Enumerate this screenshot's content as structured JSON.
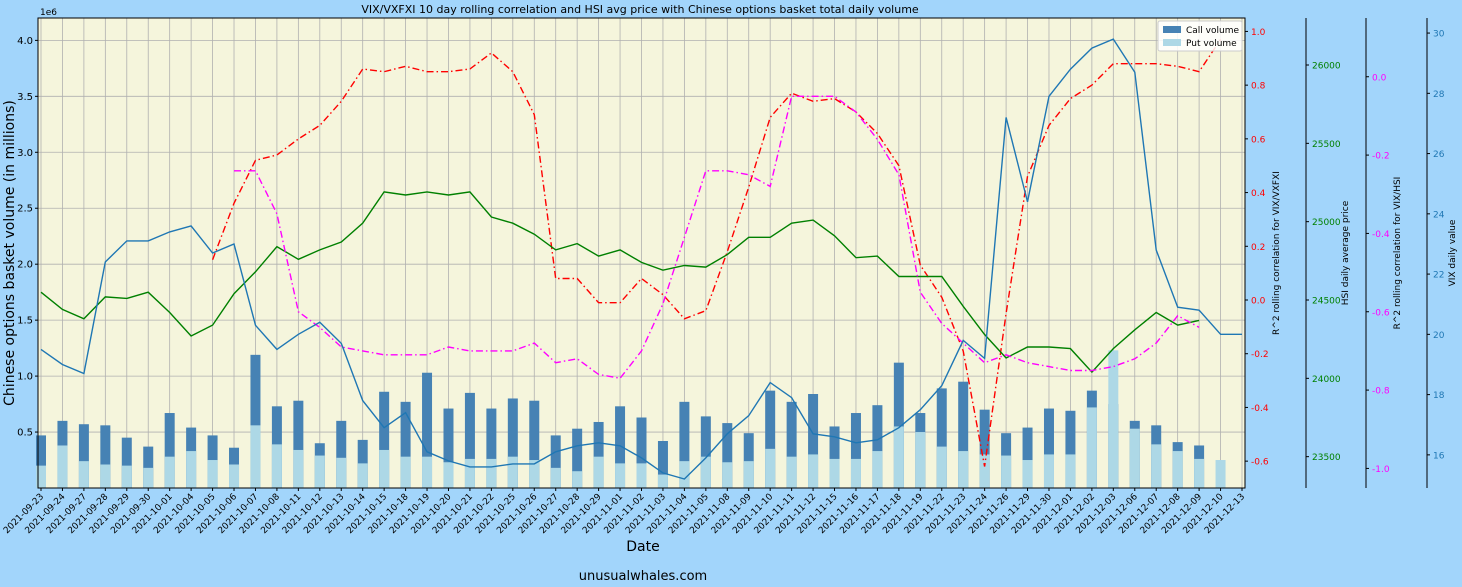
{
  "chart_data": {
    "type": "bar",
    "title": "VIX/VXFXI 10 day rolling correlation and HSI avg price with Chinese options basket total daily volume",
    "xlabel": "Date",
    "ylabel": "Chinese options basket volume (in millions)",
    "y_offset_label": "1e6",
    "footer": "unusualwhales.com",
    "grid": true,
    "legend_position": "top-right",
    "colors": {
      "figure_background": "#a2d5fb",
      "plot_background": "#f5f5dc",
      "call": "#4682b4",
      "put": "#add8e6",
      "corr_vxfxi": "#ff0000",
      "hsi": "#008000",
      "corr_hsi": "#ff00ff",
      "vix": "#1f77b4"
    },
    "categories": [
      "2021-09-23",
      "2021-09-24",
      "2021-09-27",
      "2021-09-28",
      "2021-09-29",
      "2021-09-30",
      "2021-10-01",
      "2021-10-04",
      "2021-10-05",
      "2021-10-06",
      "2021-10-07",
      "2021-10-08",
      "2021-10-11",
      "2021-10-12",
      "2021-10-13",
      "2021-10-14",
      "2021-10-15",
      "2021-10-18",
      "2021-10-19",
      "2021-10-20",
      "2021-10-21",
      "2021-10-22",
      "2021-10-25",
      "2021-10-26",
      "2021-10-27",
      "2021-10-28",
      "2021-10-29",
      "2021-11-01",
      "2021-11-02",
      "2021-11-03",
      "2021-11-04",
      "2021-11-05",
      "2021-11-08",
      "2021-11-09",
      "2021-11-10",
      "2021-11-11",
      "2021-11-12",
      "2021-11-15",
      "2021-11-16",
      "2021-11-17",
      "2021-11-18",
      "2021-11-19",
      "2021-11-22",
      "2021-11-23",
      "2021-11-24",
      "2021-11-26",
      "2021-11-29",
      "2021-11-30",
      "2021-12-01",
      "2021-12-02",
      "2021-12-03",
      "2021-12-06",
      "2021-12-07",
      "2021-12-08",
      "2021-12-09",
      "2021-12-10",
      "2021-12-13"
    ],
    "left_axis": {
      "label": "Chinese options basket volume (in millions)",
      "ylim": [
        0,
        4.2
      ],
      "ticks": [
        "0.5",
        "1.0",
        "1.5",
        "2.0",
        "2.5",
        "3.0",
        "3.5",
        "4.0"
      ]
    },
    "bar_series": [
      {
        "name": "Call volume",
        "values": [
          0.47,
          0.6,
          0.57,
          0.56,
          0.45,
          0.37,
          0.67,
          0.54,
          0.47,
          0.36,
          1.19,
          0.73,
          0.78,
          0.4,
          0.6,
          0.43,
          0.86,
          0.77,
          1.03,
          0.71,
          0.85,
          0.71,
          0.8,
          0.78,
          0.47,
          0.53,
          0.59,
          0.73,
          0.63,
          0.42,
          0.77,
          0.64,
          0.58,
          0.49,
          0.87,
          0.77,
          0.84,
          0.55,
          0.67,
          0.74,
          1.12,
          0.67,
          0.89,
          0.95,
          0.7,
          0.49,
          0.54,
          0.71,
          0.69,
          0.87,
          0.75,
          0.6,
          0.56,
          0.41,
          0.38,
          null,
          null
        ]
      },
      {
        "name": "Put volume",
        "values": [
          0.2,
          0.38,
          0.24,
          0.21,
          0.2,
          0.18,
          0.28,
          0.33,
          0.25,
          0.21,
          0.56,
          0.39,
          0.34,
          0.29,
          0.27,
          0.22,
          0.34,
          0.28,
          0.28,
          0.23,
          0.26,
          0.26,
          0.28,
          0.25,
          0.18,
          0.15,
          0.28,
          0.22,
          0.22,
          0.12,
          0.24,
          0.28,
          0.23,
          0.24,
          0.35,
          0.28,
          0.3,
          0.26,
          0.26,
          0.33,
          0.55,
          0.5,
          0.37,
          0.33,
          0.3,
          0.29,
          0.25,
          0.3,
          0.3,
          0.72,
          1.23,
          0.53,
          0.39,
          0.33,
          0.26,
          0.25,
          null
        ]
      }
    ],
    "line_series": [
      {
        "name": "R^2 rolling correlation for VIX/VXFXI",
        "axis_label": "R^2 rolling correlation for VIX/VXFXI",
        "ylim": [
          -0.7,
          1.05
        ],
        "ticks": [
          "-0.6",
          "-0.4",
          "-0.2",
          "0.0",
          "0.2",
          "0.4",
          "0.6",
          "0.8",
          "1.0"
        ],
        "tick_values": [
          -0.6,
          -0.4,
          -0.2,
          0.0,
          0.2,
          0.4,
          0.6,
          0.8,
          1.0
        ],
        "style": "dashdot",
        "values": [
          null,
          null,
          null,
          null,
          null,
          null,
          null,
          null,
          0.15,
          0.36,
          0.52,
          0.54,
          0.6,
          0.65,
          0.74,
          0.86,
          0.85,
          0.87,
          0.85,
          0.85,
          0.86,
          0.92,
          0.85,
          0.69,
          0.08,
          0.08,
          -0.01,
          -0.01,
          0.08,
          0.02,
          -0.07,
          -0.04,
          0.18,
          0.42,
          0.68,
          0.77,
          0.74,
          0.75,
          0.7,
          0.62,
          0.5,
          0.13,
          0.01,
          -0.19,
          -0.62,
          -0.05,
          0.46,
          0.65,
          0.75,
          0.8,
          0.88,
          0.88,
          0.88,
          0.87,
          0.85,
          0.97,
          null
        ]
      },
      {
        "name": "HSI daily average price",
        "axis_label": "HSI daily average price",
        "ylim": [
          23300,
          26300
        ],
        "ticks": [
          "23500",
          "24000",
          "24500",
          "25000",
          "25500",
          "26000"
        ],
        "tick_values": [
          23500,
          24000,
          24500,
          25000,
          25500,
          26000
        ],
        "style": "solid",
        "values": [
          24550,
          24440,
          24380,
          24520,
          24510,
          24550,
          24420,
          24270,
          24340,
          24540,
          24680,
          24840,
          24760,
          24820,
          24870,
          24990,
          25190,
          25170,
          25190,
          25170,
          25190,
          25030,
          24990,
          24920,
          24820,
          24860,
          24780,
          24820,
          24740,
          24690,
          24720,
          24710,
          24790,
          24900,
          24900,
          24990,
          25010,
          24910,
          24770,
          24780,
          24650,
          24650,
          24650,
          24460,
          24280,
          24130,
          24200,
          24200,
          24190,
          24040,
          24190,
          24310,
          24420,
          24340,
          24370,
          null,
          null
        ]
      },
      {
        "name": "R^2 rolling correlation for VIX/HSI",
        "axis_label": "R^2 rolling correlation for VIX/HSI",
        "ylim": [
          -1.05,
          0.15
        ],
        "ticks": [
          "-1.0",
          "-0.8",
          "-0.6",
          "-0.4",
          "-0.2",
          "0.0"
        ],
        "tick_values": [
          -1.0,
          -0.8,
          -0.6,
          -0.4,
          -0.2,
          0.0
        ],
        "style": "dashdot",
        "values": [
          null,
          null,
          null,
          null,
          null,
          null,
          null,
          null,
          null,
          -0.24,
          -0.24,
          -0.35,
          -0.6,
          -0.64,
          -0.69,
          -0.7,
          -0.71,
          -0.71,
          -0.71,
          -0.69,
          -0.7,
          -0.7,
          -0.7,
          -0.68,
          -0.73,
          -0.72,
          -0.76,
          -0.77,
          -0.7,
          -0.58,
          -0.41,
          -0.24,
          -0.24,
          -0.25,
          -0.28,
          -0.05,
          -0.05,
          -0.05,
          -0.09,
          -0.16,
          -0.25,
          -0.55,
          -0.63,
          -0.68,
          -0.73,
          -0.71,
          -0.73,
          -0.74,
          -0.75,
          -0.75,
          -0.74,
          -0.72,
          -0.68,
          -0.61,
          -0.64,
          null,
          null
        ]
      },
      {
        "name": "VIX daily value",
        "axis_label": "VIX daily value",
        "ylim": [
          14.9,
          30.5
        ],
        "ticks": [
          "16",
          "18",
          "20",
          "22",
          "24",
          "26",
          "28",
          "30"
        ],
        "tick_values": [
          16,
          18,
          20,
          22,
          24,
          26,
          28,
          30
        ],
        "style": "solid",
        "values": [
          19.5,
          19.0,
          18.7,
          22.4,
          23.1,
          23.1,
          23.4,
          23.6,
          22.7,
          23.0,
          20.3,
          19.5,
          20.0,
          20.4,
          19.7,
          17.8,
          16.9,
          17.4,
          16.1,
          15.8,
          15.6,
          15.6,
          15.7,
          15.7,
          16.1,
          16.3,
          16.4,
          16.3,
          15.9,
          15.4,
          15.2,
          15.9,
          16.7,
          17.3,
          18.4,
          17.9,
          16.7,
          16.6,
          16.4,
          16.5,
          16.9,
          17.5,
          18.3,
          19.8,
          19.2,
          27.2,
          24.4,
          27.9,
          28.8,
          29.5,
          29.8,
          28.7,
          22.8,
          20.9,
          20.8,
          20.0,
          20.0
        ]
      }
    ]
  },
  "legend": {
    "call_label": "Call volume",
    "put_label": "Put volume"
  }
}
